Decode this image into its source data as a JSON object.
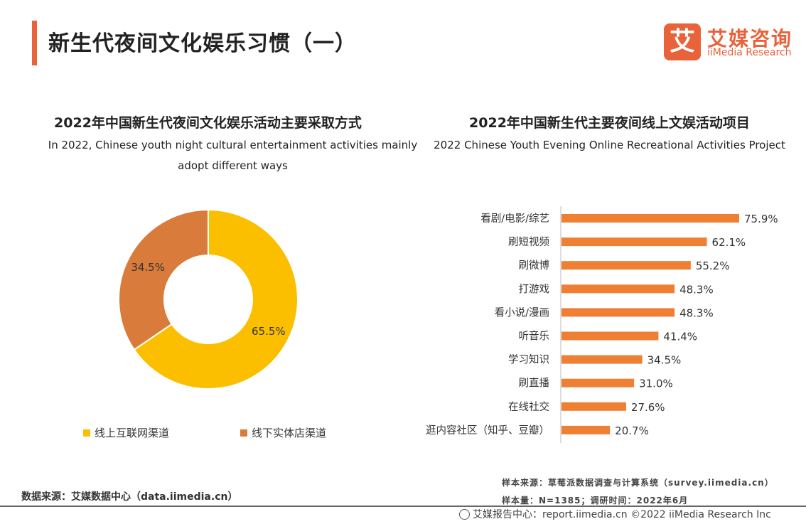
{
  "header": {
    "title": "新生代夜间文化娱乐习惯（一）",
    "logo_mark": "艾",
    "logo_cn": "艾媒咨询",
    "logo_en": "iiMedia Research"
  },
  "colors": {
    "accent": "#e8623a",
    "yellow": "#fbbf00",
    "brown": "#d97b3a",
    "bar": "#ef7f33"
  },
  "chart_data": [
    {
      "type": "pie",
      "title": "2022年中国新生代夜间文化娱乐活动主要采取方式",
      "subtitle": "In 2022, Chinese youth night cultural entertainment activities mainly adopt different ways",
      "categories": [
        "线上互联网渠道",
        "线下实体店渠道"
      ],
      "values": [
        65.5,
        34.5
      ],
      "labels": [
        "65.5%",
        "34.5%"
      ],
      "colors": [
        "#fbbf00",
        "#d97b3a"
      ],
      "donut": true,
      "legend_position": "bottom"
    },
    {
      "type": "bar",
      "orientation": "horizontal",
      "title": "2022年中国新生代主要夜间线上文娱活动项目",
      "subtitle": "2022 Chinese Youth Evening Online Recreational  Activities Project",
      "categories": [
        "看剧/电影/综艺",
        "刷短视频",
        "刷微博",
        "打游戏",
        "看小说/漫画",
        "听音乐",
        "学习知识",
        "刷直播",
        "在线社交",
        "逛内容社区（知乎、豆瓣）"
      ],
      "values": [
        75.9,
        62.1,
        55.2,
        48.3,
        48.3,
        41.4,
        34.5,
        31.0,
        27.6,
        20.7
      ],
      "labels": [
        "75.9%",
        "62.1%",
        "55.2%",
        "48.3%",
        "48.3%",
        "41.4%",
        "34.5%",
        "31.0%",
        "27.6%",
        "20.7%"
      ],
      "xlim": [
        0,
        75.9
      ],
      "grid": false
    }
  ],
  "footer": {
    "source": "数据来源：艾媒数据中心（data.iimedia.cn）",
    "sample_source": "样本来源：草莓派数据调查与计算系统（survey.iimedia.cn）",
    "sample_size": "样本量：N=1385；调研时间：2022年6月",
    "report": "艾媒报告中心：report.iimedia.cn  ©2022  iiMedia Research  Inc"
  }
}
